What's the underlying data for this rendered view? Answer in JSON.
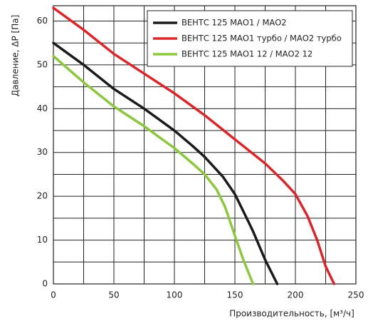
{
  "chart_data": {
    "type": "line",
    "ylabel": "Давление, ΔP [Па]",
    "xlabel": "Производительность, [м³/ч]",
    "xlim": [
      0,
      250
    ],
    "xticks": [
      0,
      50,
      100,
      150,
      200,
      250
    ],
    "xminor": [
      25,
      75,
      125,
      175,
      225
    ],
    "ylim": [
      0,
      63.5
    ],
    "yticks": [
      0,
      10,
      20,
      30,
      40,
      50,
      60
    ],
    "yminor": [
      5,
      15,
      25,
      35,
      45,
      55
    ],
    "grid": true,
    "legend": "upper right",
    "series": [
      {
        "name": "ВЕНТС 125 МАО1 / МАО2",
        "color": "#1a1a1a",
        "x": [
          0,
          25,
          50,
          75,
          100,
          115,
          125,
          140,
          150,
          158,
          165,
          175,
          185
        ],
        "values": [
          55,
          50,
          44.5,
          40,
          35,
          31.5,
          29,
          24.5,
          20.5,
          16,
          12,
          5.5,
          0
        ]
      },
      {
        "name": "ВЕНТС 125 МАО1 турбо / МАО2 турбо",
        "color": "#d9262a",
        "x": [
          0,
          25,
          50,
          75,
          100,
          125,
          150,
          175,
          190,
          200,
          210,
          218,
          225,
          232
        ],
        "values": [
          63,
          58,
          52.5,
          48,
          43.5,
          38.5,
          33,
          27.5,
          23.5,
          20.5,
          15.5,
          10,
          4,
          0
        ]
      },
      {
        "name": "ВЕНТС 125 МАО1 12 / МАО2 12",
        "color": "#8dc63f",
        "x": [
          0,
          25,
          50,
          75,
          100,
          115,
          125,
          135,
          142,
          150,
          157,
          165
        ],
        "values": [
          52,
          46,
          40.5,
          36,
          31,
          27.5,
          25,
          21.5,
          17.5,
          11,
          5.5,
          0
        ]
      }
    ]
  }
}
